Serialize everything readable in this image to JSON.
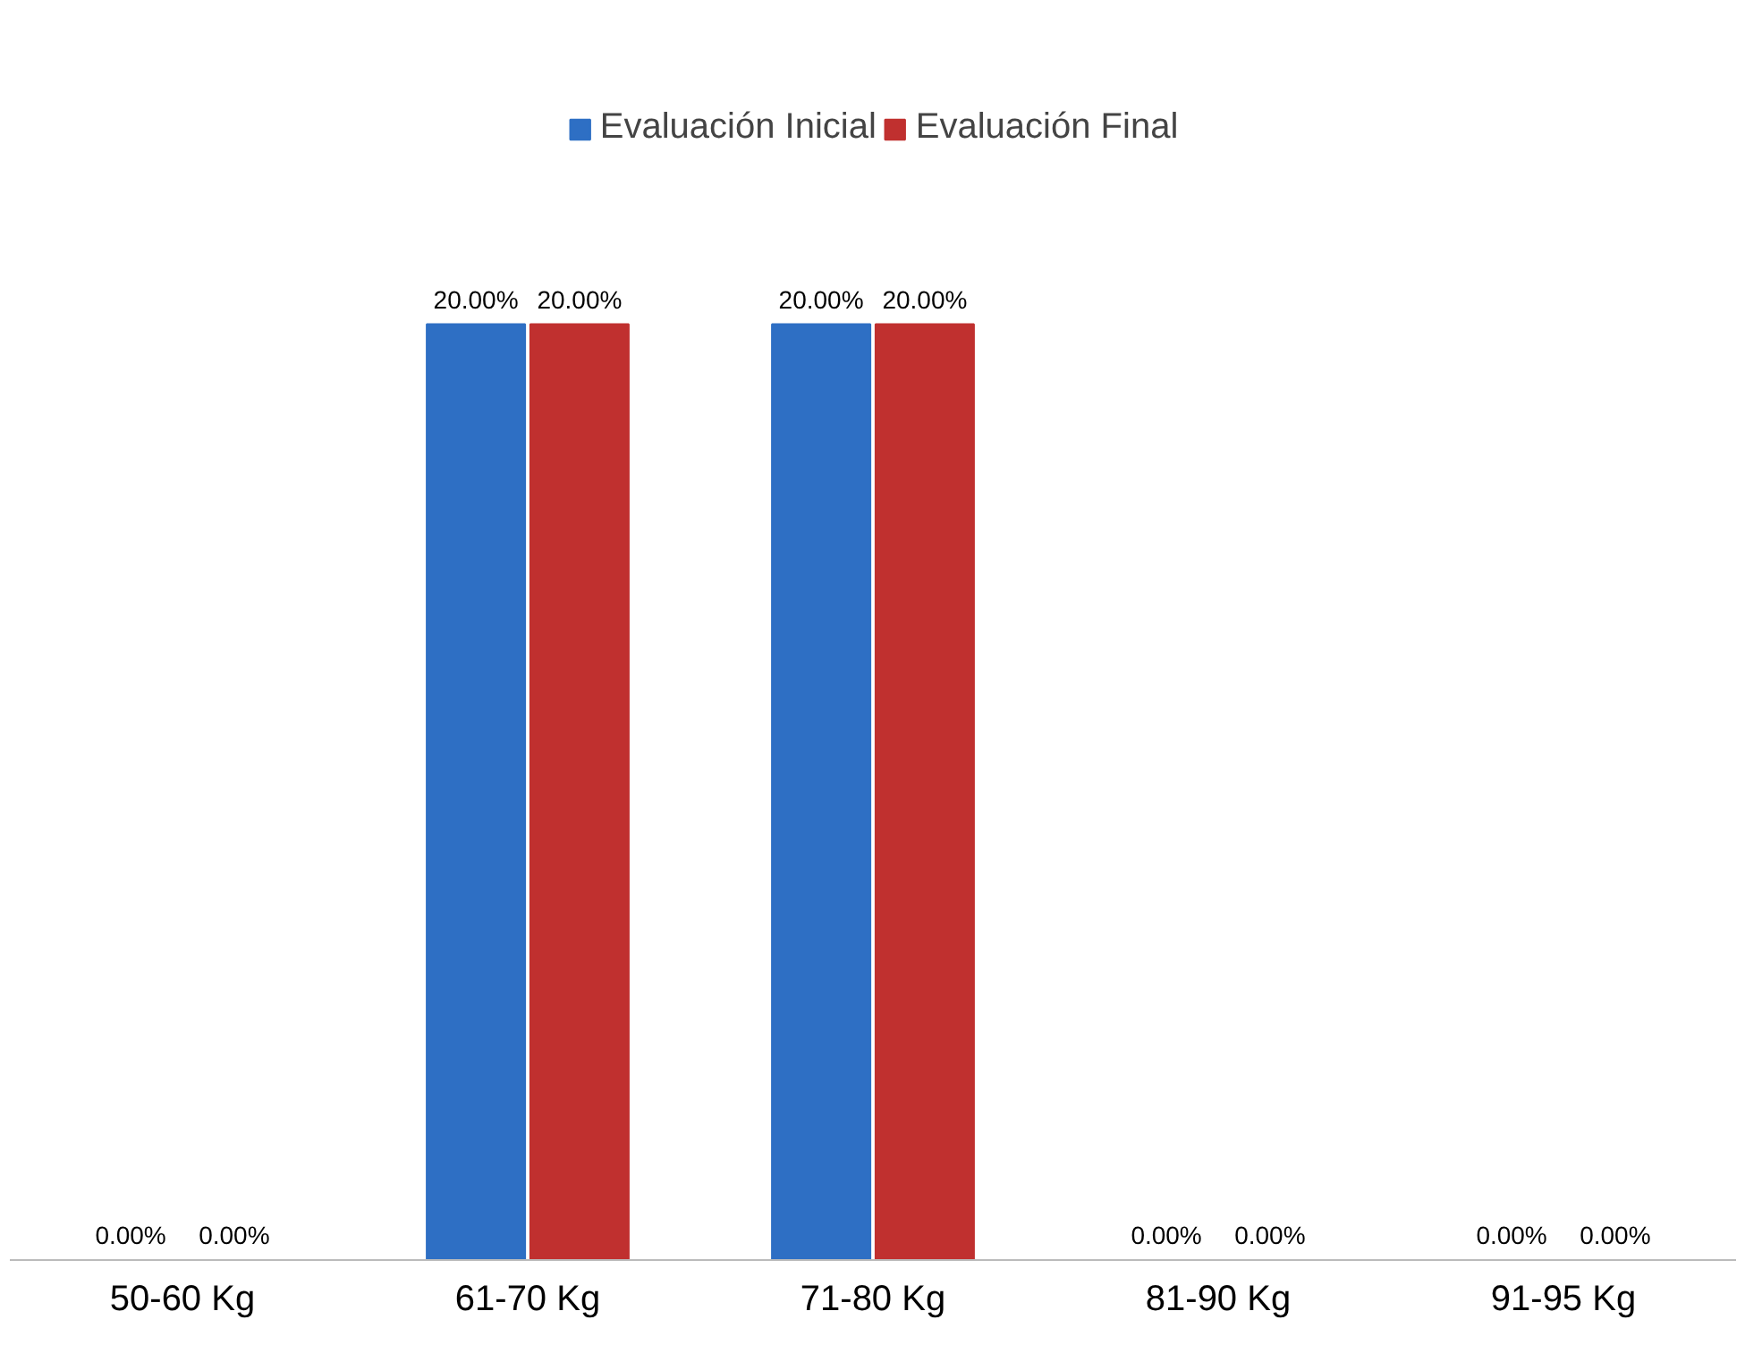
{
  "chart_data": {
    "type": "bar",
    "categories": [
      "50-60 Kg",
      "61-70 Kg",
      "71-80 Kg",
      "81-90 Kg",
      "91-95 Kg"
    ],
    "series": [
      {
        "name": "Evaluación Inicial",
        "color": "#2e6fc4",
        "values": [
          0,
          20,
          20,
          0,
          0
        ],
        "value_labels": [
          "0.00%",
          "20.00%",
          "20.00%",
          "0.00%",
          "0.00%"
        ]
      },
      {
        "name": "Evaluación Final",
        "color": "#c0302f",
        "values": [
          0,
          20,
          20,
          0,
          0
        ],
        "value_labels": [
          "0.00%",
          "20.00%",
          "20.00%",
          "0.00%",
          "0.00%"
        ]
      }
    ],
    "legend": "top",
    "grid": false
  }
}
